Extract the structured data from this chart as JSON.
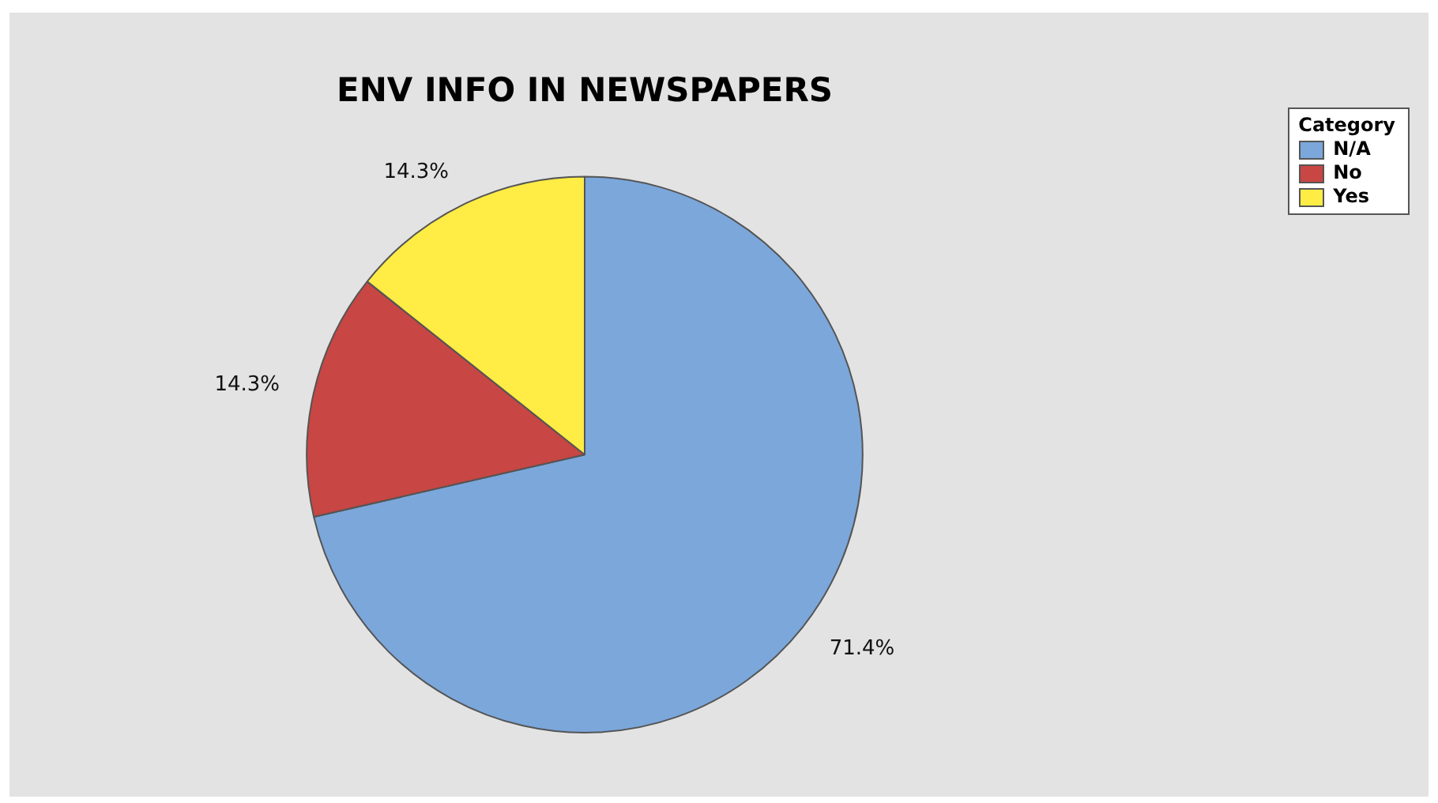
{
  "chart_data": {
    "type": "pie",
    "title": "ENV INFO IN NEWSPAPERS",
    "legend_title": "Category",
    "legend": "top right",
    "categories": [
      "N/A",
      "No",
      "Yes"
    ],
    "values": [
      71.4,
      14.3,
      14.3
    ],
    "value_labels": [
      "71.4%",
      "14.3%",
      "14.3%"
    ],
    "colors": [
      "#7ba7db",
      "#c84643",
      "#ffec45"
    ]
  }
}
